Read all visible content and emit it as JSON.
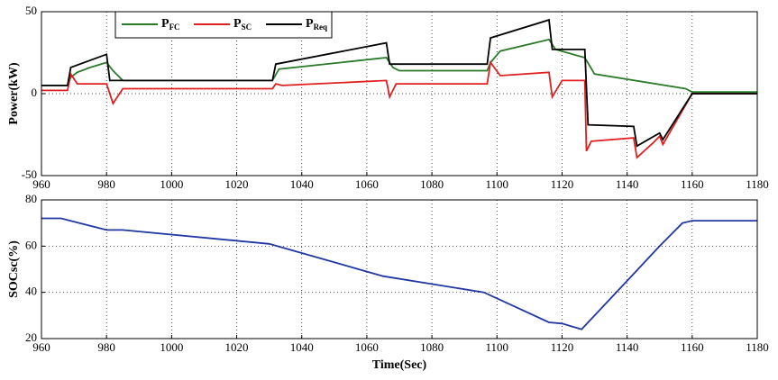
{
  "chart_data": [
    {
      "type": "line",
      "ylabel": "Power(kW)",
      "xlim": [
        960,
        1180
      ],
      "xticks": [
        960,
        980,
        1000,
        1020,
        1040,
        1060,
        1080,
        1100,
        1120,
        1140,
        1160,
        1180
      ],
      "ylim": [
        -50,
        50
      ],
      "yticks": [
        -50,
        0,
        50
      ],
      "grid": true,
      "legend": "top",
      "series": [
        {
          "name": "PFC",
          "color": "#2a7a2a",
          "x": [
            960,
            968,
            969,
            971,
            975,
            980,
            982,
            985,
            1031,
            1033,
            1066,
            1068,
            1070,
            1097,
            1098,
            1101,
            1116,
            1118,
            1127,
            1130,
            1158,
            1160,
            1180
          ],
          "values": [
            5,
            5,
            10,
            13,
            16,
            19,
            14,
            8,
            8,
            15,
            22,
            16,
            14,
            14,
            19,
            26,
            33,
            27,
            22,
            12,
            3,
            1,
            1
          ]
        },
        {
          "name": "PSC",
          "color": "#e02020",
          "x": [
            960,
            968,
            969,
            971,
            980,
            982,
            985,
            1031,
            1032,
            1034,
            1066,
            1067,
            1069,
            1097,
            1098,
            1101,
            1116,
            1117,
            1120,
            1127,
            1127.5,
            1129,
            1142,
            1143,
            1148,
            1150,
            1151,
            1160,
            1180
          ],
          "values": [
            2,
            2,
            12,
            6,
            6,
            -6,
            3,
            3,
            6,
            5,
            8,
            -2,
            6,
            6,
            19,
            11,
            13,
            -2,
            8,
            8,
            -35,
            -29,
            -27,
            -39,
            -30,
            -26,
            -31,
            0,
            0
          ]
        },
        {
          "name": "PReq",
          "color": "#000000",
          "x": [
            960,
            968,
            969,
            980,
            981,
            1031,
            1032,
            1066,
            1067,
            1097,
            1098,
            1116,
            1117,
            1127,
            1128,
            1142,
            1143,
            1150,
            1151,
            1160,
            1180
          ],
          "values": [
            5,
            5,
            16,
            24,
            8,
            8,
            18,
            31,
            18,
            18,
            34,
            45,
            27,
            27,
            -19,
            -20,
            -32,
            -24,
            -28,
            0,
            0
          ]
        }
      ]
    },
    {
      "type": "line",
      "ylabel": "SOCsc(%)",
      "xlabel": "Time(Sec)",
      "xlim": [
        960,
        1180
      ],
      "xticks": [
        960,
        980,
        1000,
        1020,
        1040,
        1060,
        1080,
        1100,
        1120,
        1140,
        1160,
        1180
      ],
      "ylim": [
        20,
        80
      ],
      "yticks": [
        20,
        40,
        60,
        80
      ],
      "grid": true,
      "series": [
        {
          "name": "SOCsc",
          "color": "#2038a0",
          "x": [
            960,
            966,
            980,
            985,
            1030,
            1040,
            1060,
            1065,
            1096,
            1116,
            1120,
            1126,
            1142,
            1150,
            1157,
            1160,
            1180
          ],
          "values": [
            72,
            72,
            67,
            67,
            61,
            57,
            49,
            47,
            40,
            27,
            26.5,
            24,
            48,
            60,
            70,
            71,
            71
          ]
        }
      ]
    }
  ]
}
